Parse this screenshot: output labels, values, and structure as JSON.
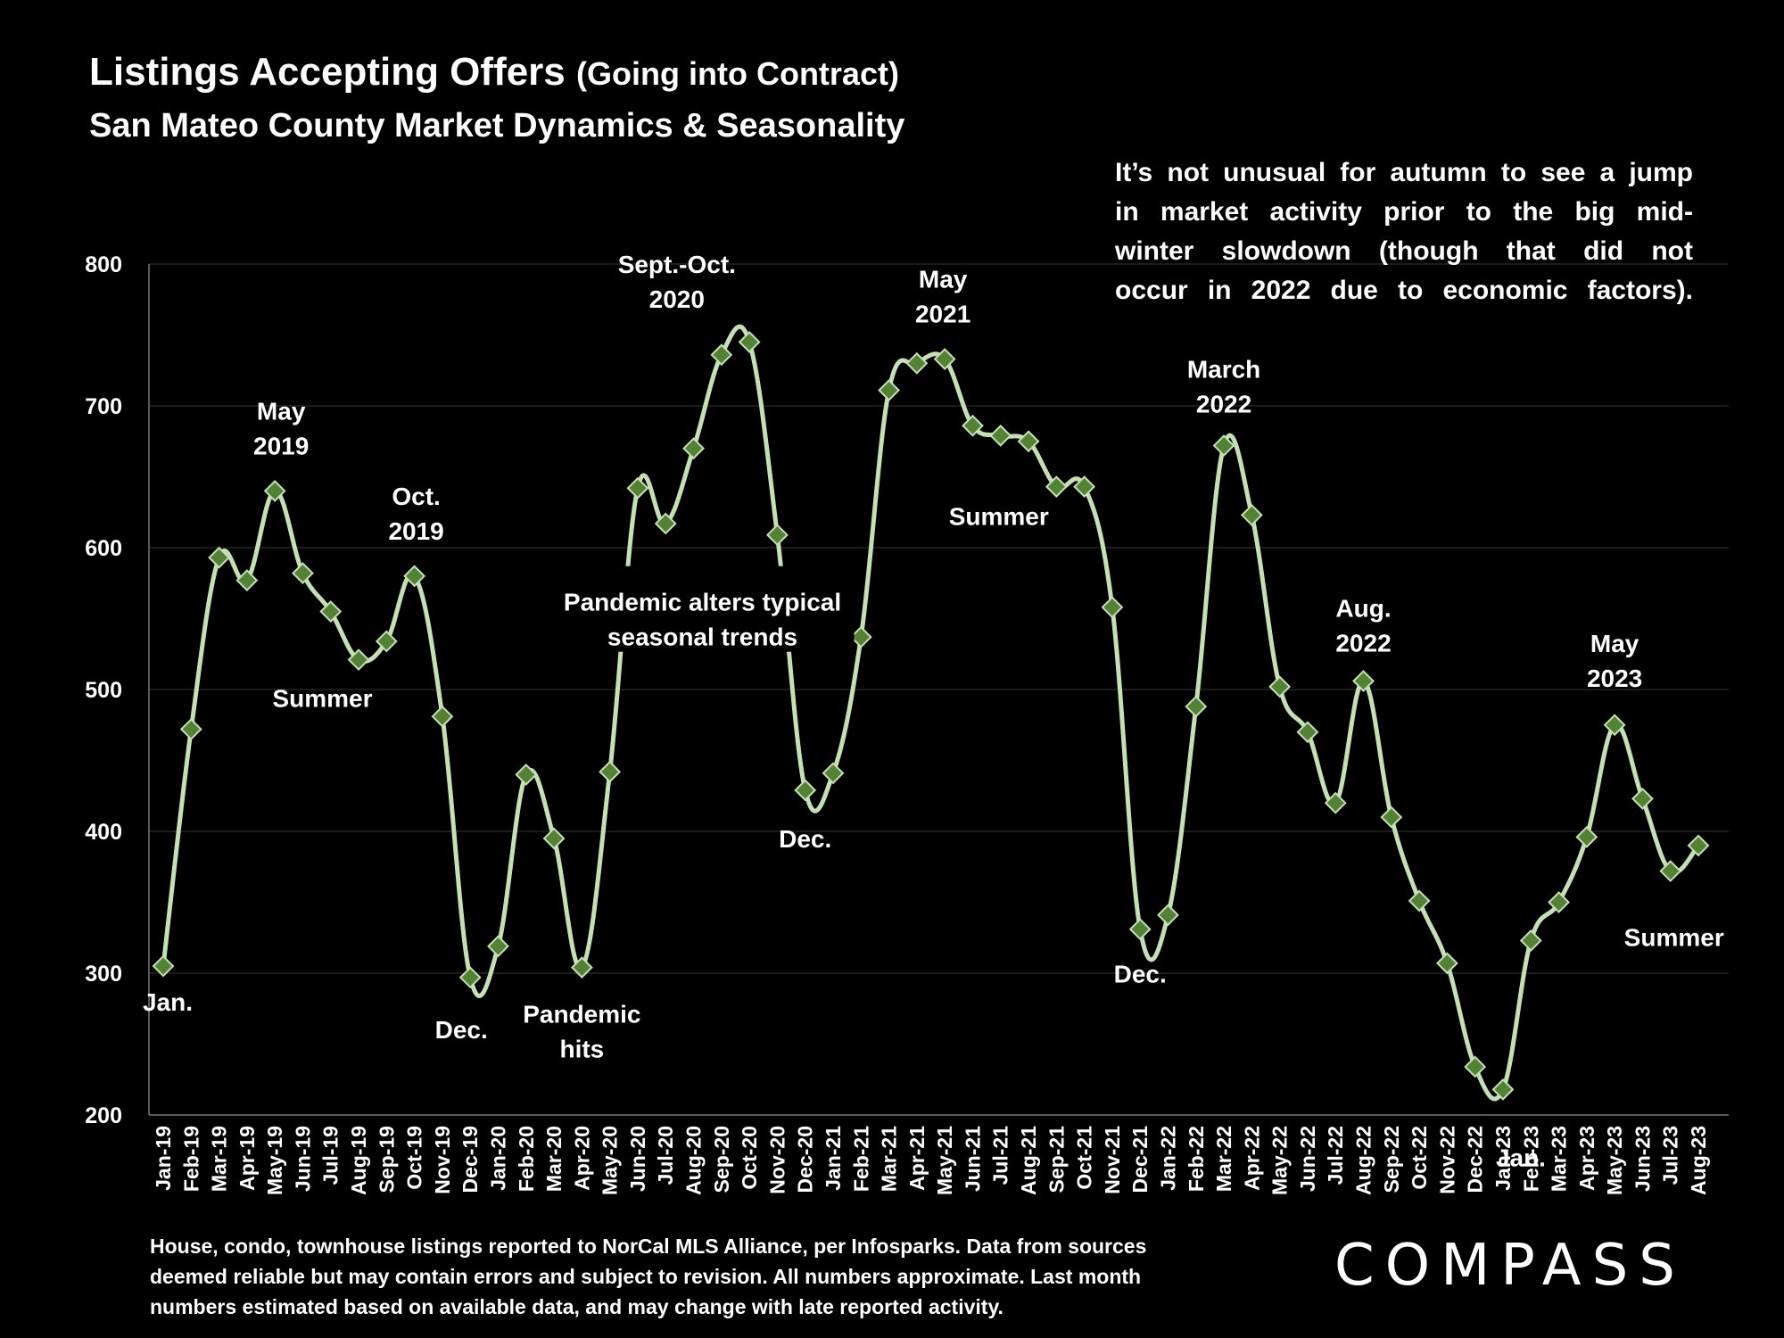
{
  "header": {
    "title_main": "Listings Accepting Offers",
    "title_sub": "(Going into Contract)",
    "subtitle": "San Mateo County Market Dynamics & Seasonality"
  },
  "note": {
    "lines": [
      "It’s not unusual for autumn to see a jump",
      "in market activity prior to the big mid-",
      "winter slowdown (though that did not",
      "occur in 2022 due to economic factors)."
    ]
  },
  "footnote": {
    "lines": [
      "House, condo, townhouse listings reported to NorCal MLS Alliance, per Infosparks. Data from sources",
      "deemed reliable but may contain errors and subject to revision. All numbers approximate. Last month",
      "numbers estimated based on available data, and may change with late reported activity."
    ]
  },
  "brand": {
    "logo_text": "COMPASS"
  },
  "colors": {
    "background": "#000000",
    "line": "#c5e0b4",
    "marker": "#548235",
    "marker_edge": "#c5e0b4",
    "grid": "#262626",
    "text": "#ffffff"
  },
  "chart_data": {
    "type": "line",
    "ylim": [
      200,
      800
    ],
    "yticks": [
      200,
      300,
      400,
      500,
      600,
      700,
      800
    ],
    "grid": true,
    "categories": [
      "Jan-19",
      "Feb-19",
      "Mar-19",
      "Apr-19",
      "May-19",
      "Jun-19",
      "Jul-19",
      "Aug-19",
      "Sep-19",
      "Oct-19",
      "Nov-19",
      "Dec-19",
      "Jan-20",
      "Feb-20",
      "Mar-20",
      "Apr-20",
      "May-20",
      "Jun-20",
      "Jul-20",
      "Aug-20",
      "Sep-20",
      "Oct-20",
      "Nov-20",
      "Dec-20",
      "Jan-21",
      "Feb-21",
      "Mar-21",
      "Apr-21",
      "May-21",
      "Jun-21",
      "Jul-21",
      "Aug-21",
      "Sep-21",
      "Oct-21",
      "Nov-21",
      "Dec-21",
      "Jan-22",
      "Feb-22",
      "Mar-22",
      "Apr-22",
      "May-22",
      "Jun-22",
      "Jul-22",
      "Aug-22",
      "Sep-22",
      "Oct-22",
      "Nov-22",
      "Dec-22",
      "Jan-23",
      "Feb-23",
      "Mar-23",
      "Apr-23",
      "May-23",
      "Jun-23",
      "Jul-23",
      "Aug-23"
    ],
    "series": [
      {
        "values": [
          305,
          472,
          593,
          577,
          640,
          582,
          555,
          521,
          534,
          580,
          481,
          297,
          319,
          440,
          395,
          304,
          442,
          642,
          617,
          670,
          736,
          745,
          609,
          429,
          441,
          537,
          711,
          730,
          733,
          686,
          679,
          675,
          643,
          643,
          558,
          331,
          341,
          488,
          672,
          623,
          502,
          470,
          420,
          506,
          410,
          351,
          307,
          234,
          218,
          323,
          350,
          396,
          475,
          423,
          372,
          390
        ]
      }
    ],
    "annotations": [
      {
        "index": 0,
        "text": [
          "Jan."
        ]
      },
      {
        "index": 4,
        "text": [
          "May",
          "2019"
        ]
      },
      {
        "index": 5,
        "text": [
          "Summer"
        ]
      },
      {
        "index": 9,
        "text": [
          "Oct.",
          "2019"
        ]
      },
      {
        "index": 11,
        "text": [
          "Dec."
        ]
      },
      {
        "index": 15,
        "text": [
          "Pandemic",
          "hits"
        ]
      },
      {
        "index": 20,
        "text": [
          "Sept.-Oct.",
          "2020"
        ]
      },
      {
        "index": 19,
        "text": [
          "Pandemic alters typical",
          "seasonal trends"
        ]
      },
      {
        "index": 23,
        "text": [
          "Dec."
        ]
      },
      {
        "index": 28,
        "text": [
          "May",
          "2021"
        ]
      },
      {
        "index": 30,
        "text": [
          "Summer"
        ]
      },
      {
        "index": 35,
        "text": [
          "Dec."
        ]
      },
      {
        "index": 38,
        "text": [
          "March",
          "2022"
        ]
      },
      {
        "index": 43,
        "text": [
          "Aug.",
          "2022"
        ]
      },
      {
        "index": 48,
        "text": [
          "Jan."
        ]
      },
      {
        "index": 52,
        "text": [
          "May",
          "2023"
        ]
      },
      {
        "index": 54,
        "text": [
          "Summer"
        ]
      }
    ]
  }
}
